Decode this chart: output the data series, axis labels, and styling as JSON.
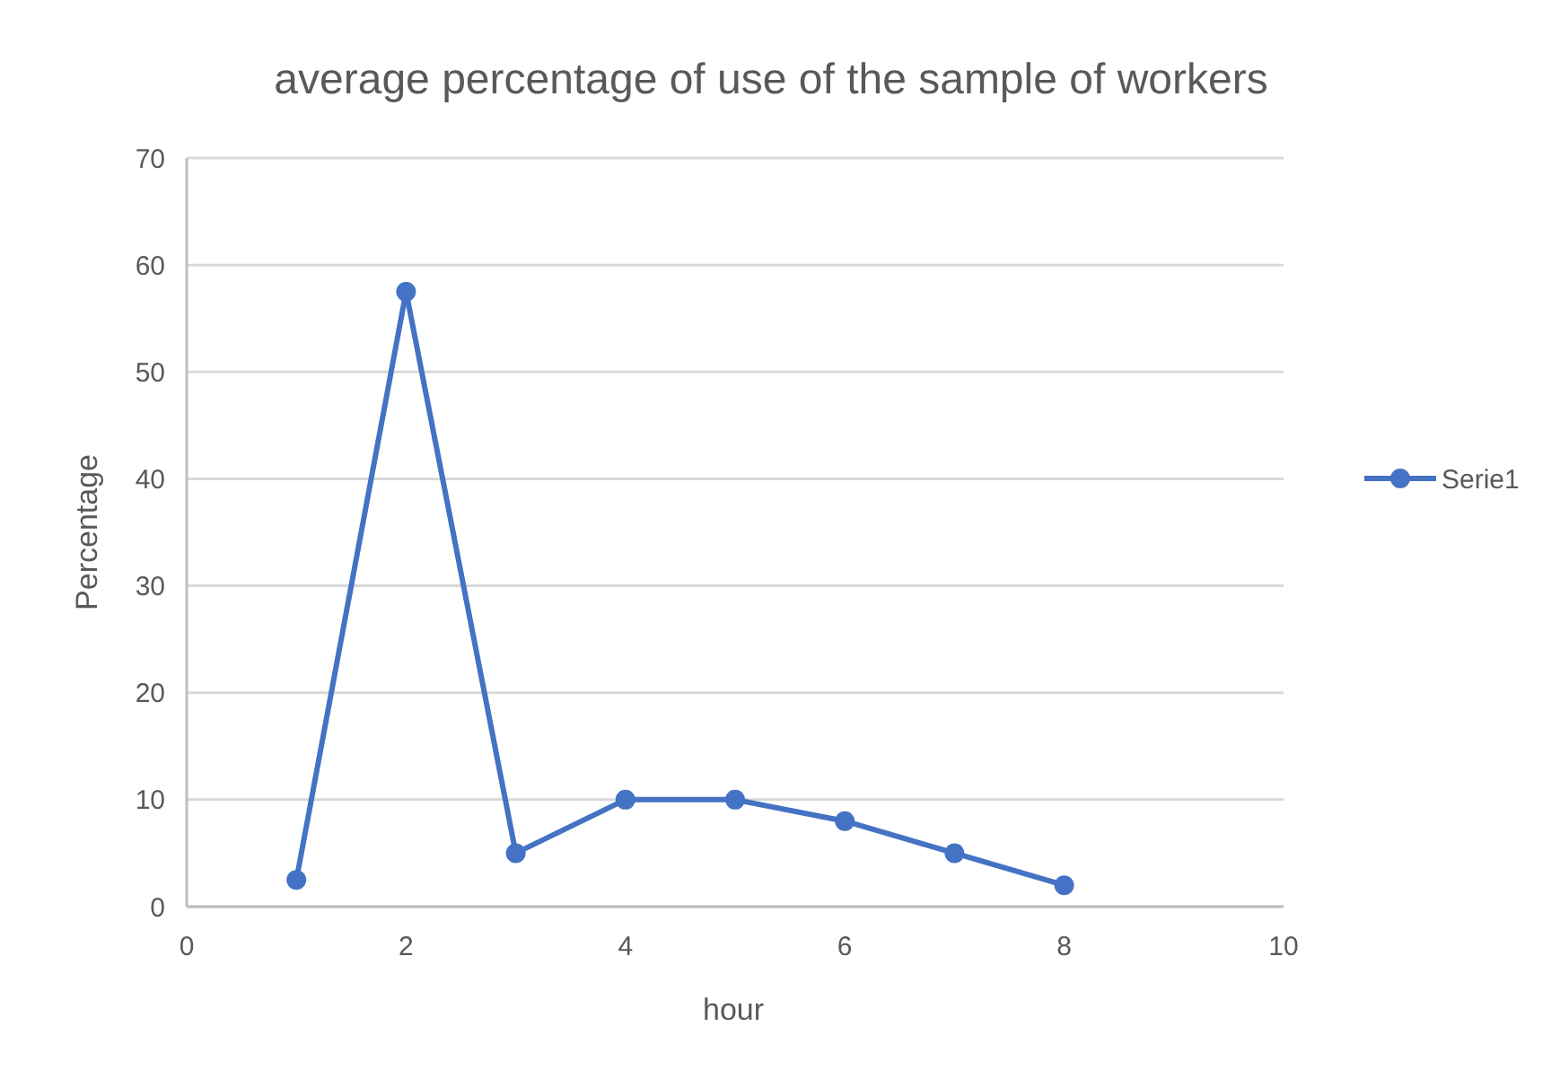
{
  "chart_data": {
    "type": "line",
    "title": "average percentage of use of the sample of workers",
    "xlabel": "hour",
    "ylabel": "Percentage",
    "series": [
      {
        "name": "Serie1",
        "color": "#4472c4",
        "x": [
          1,
          2,
          3,
          4,
          5,
          6,
          7,
          8
        ],
        "values": [
          2.5,
          57.5,
          5,
          10,
          10,
          8,
          5,
          2
        ]
      }
    ],
    "xlim": [
      0,
      10
    ],
    "xticks": [
      0,
      2,
      4,
      6,
      8,
      10
    ],
    "ylim": [
      0,
      70
    ],
    "yticks": [
      0,
      10,
      20,
      30,
      40,
      50,
      60,
      70
    ],
    "grid": "y",
    "legend": "right",
    "marker": "circle",
    "line_style": "solid"
  }
}
